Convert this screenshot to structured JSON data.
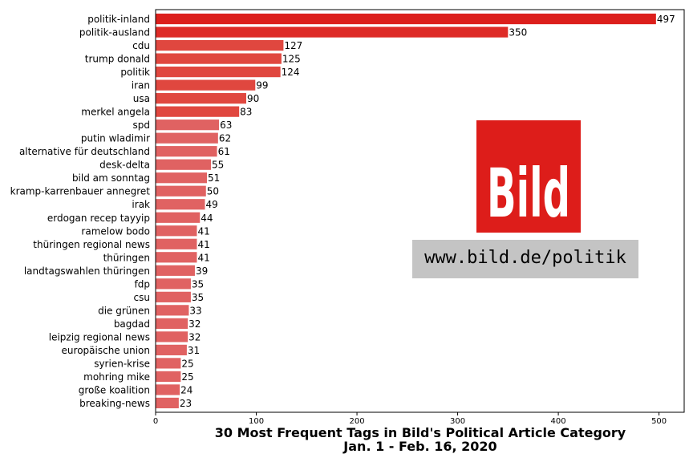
{
  "chart_data": {
    "type": "bar",
    "orientation": "horizontal",
    "title": "30 Most Frequent Tags in Bild's Political Article Category",
    "subtitle": "Jan. 1 - Feb. 16, 2020",
    "xlabel": "",
    "ylabel": "",
    "xlim": [
      0,
      525
    ],
    "xticks": [
      0,
      100,
      200,
      300,
      400,
      500
    ],
    "grid": false,
    "categories": [
      "politik-inland",
      "politik-ausland",
      "cdu",
      "trump donald",
      "politik",
      "iran",
      "usa",
      "merkel angela",
      "spd",
      "putin wladimir",
      "alternative für deutschland",
      "desk-delta",
      "bild am sonntag",
      "kramp-karrenbauer annegret",
      "irak",
      "erdogan recep tayyip",
      "ramelow bodo",
      "thüringen regional news",
      "thüringen",
      "landtagswahlen thüringen",
      "fdp",
      "csu",
      "die grünen",
      "bagdad",
      "leipzig regional news",
      "europäische union",
      "syrien-krise",
      "mohring mike",
      "große koalition",
      "breaking-news"
    ],
    "values": [
      497,
      350,
      127,
      125,
      124,
      99,
      90,
      83,
      63,
      62,
      61,
      55,
      51,
      50,
      49,
      44,
      41,
      41,
      41,
      39,
      35,
      35,
      33,
      32,
      32,
      31,
      25,
      25,
      24,
      23
    ],
    "colors": {
      "top": "#dc1f1c",
      "second": "#de2b27",
      "mid": "#e0473f",
      "rest": "#e06262"
    }
  },
  "logo": {
    "text": "Bild",
    "background": "#dd1d1a",
    "text_color": "#ffffff"
  },
  "url_banner": {
    "text": "www.bild.de/politik",
    "background": "#c4c4c4"
  }
}
